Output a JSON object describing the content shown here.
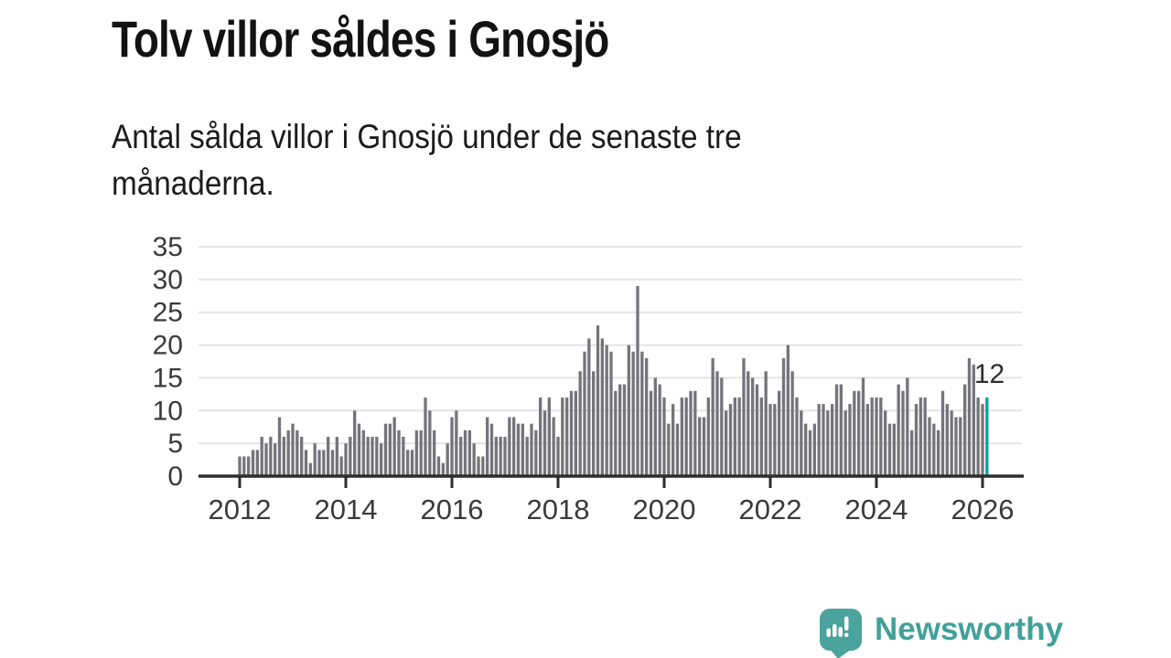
{
  "header": {
    "title": "Tolv villor såldes i Gnosjö",
    "subtitle": "Antal sålda villor i Gnosjö under de senaste tre månaderna.",
    "subtitle_lines": [
      "Antal sålda villor i Gnosjö under de senaste tre",
      "månaderna."
    ]
  },
  "chart_data": {
    "type": "bar",
    "title": "Tolv villor såldes i Gnosjö",
    "subtitle": "Antal sålda villor i Gnosjö under de senaste tre månaderna.",
    "xlabel": "",
    "ylabel": "",
    "frequency": "monthly",
    "x_start": "2012",
    "x_end": "2026",
    "values": [
      3,
      3,
      3,
      4,
      4,
      6,
      5,
      6,
      5,
      9,
      6,
      7,
      8,
      7,
      6,
      4,
      2,
      5,
      4,
      4,
      6,
      4,
      6,
      3,
      5,
      6,
      10,
      8,
      7,
      6,
      6,
      6,
      5,
      8,
      8,
      9,
      7,
      6,
      4,
      4,
      7,
      7,
      12,
      10,
      7,
      3,
      2,
      5,
      9,
      10,
      6,
      7,
      7,
      5,
      3,
      3,
      9,
      8,
      6,
      6,
      6,
      9,
      9,
      8,
      8,
      6,
      8,
      7,
      12,
      10,
      12,
      9,
      6,
      12,
      12,
      13,
      13,
      16,
      19,
      21,
      16,
      23,
      21,
      20,
      19,
      13,
      14,
      14,
      20,
      19,
      29,
      19,
      18,
      13,
      15,
      14,
      12,
      8,
      11,
      8,
      12,
      12,
      13,
      13,
      9,
      9,
      12,
      18,
      16,
      15,
      10,
      11,
      12,
      12,
      18,
      16,
      15,
      14,
      12,
      16,
      11,
      11,
      13,
      18,
      20,
      16,
      12,
      10,
      8,
      7,
      8,
      11,
      11,
      10,
      11,
      14,
      14,
      10,
      11,
      13,
      13,
      15,
      11,
      12,
      12,
      12,
      10,
      8,
      8,
      14,
      13,
      15,
      7,
      11,
      12,
      12,
      9,
      8,
      7,
      13,
      11,
      10,
      9,
      9,
      14,
      18,
      17,
      12,
      11,
      12
    ],
    "ylim": [
      0,
      37
    ],
    "yticks": [
      0,
      5,
      10,
      15,
      20,
      25,
      30,
      35
    ],
    "xticklabels": [
      "2012",
      "2014",
      "2016",
      "2018",
      "2020",
      "2022",
      "2024",
      "2026"
    ],
    "grid": true,
    "legend": "none",
    "bar_color": "#74747a",
    "accent_color": "#00a49e",
    "accent_index": 169,
    "annotation": {
      "text": "12",
      "target": "last-bar"
    }
  },
  "footer": {
    "brand": "Newsworthy",
    "brand_color": "#41a09a",
    "logo_icon": "newsworthy-speech-bubble-chart-icon"
  }
}
